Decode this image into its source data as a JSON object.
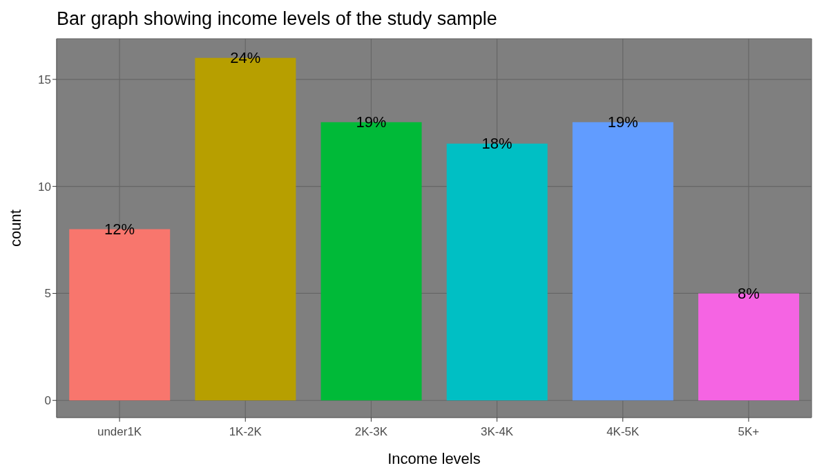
{
  "chart_data": {
    "type": "bar",
    "title": "Bar graph showing income levels of the study sample",
    "xlabel": "Income levels",
    "ylabel": "count",
    "categories": [
      "under1K",
      "1K-2K",
      "2K-3K",
      "3K-4K",
      "4K-5K",
      "5K+"
    ],
    "values": [
      8,
      16,
      13,
      12,
      13,
      5
    ],
    "colors": [
      "#f8766d",
      "#b79f00",
      "#00ba38",
      "#00bfc4",
      "#619cff",
      "#f564e3"
    ],
    "annotations": [
      {
        "text": "12%",
        "x": "under1K",
        "y": 8
      },
      {
        "text": "24%",
        "x": "1K-2K",
        "y": 16
      },
      {
        "text": "19%",
        "x": "2K-3K",
        "y": 13
      },
      {
        "text": "18%",
        "x": "3K-4K",
        "y": 12
      },
      {
        "text": "19%",
        "x": "4K-5K",
        "y": 13
      },
      {
        "text": "8%",
        "x": "5K+",
        "y": 5
      }
    ],
    "ylim": [
      -0.8,
      16.9
    ],
    "yticks": [
      0,
      5,
      10,
      15
    ],
    "grid": true
  }
}
